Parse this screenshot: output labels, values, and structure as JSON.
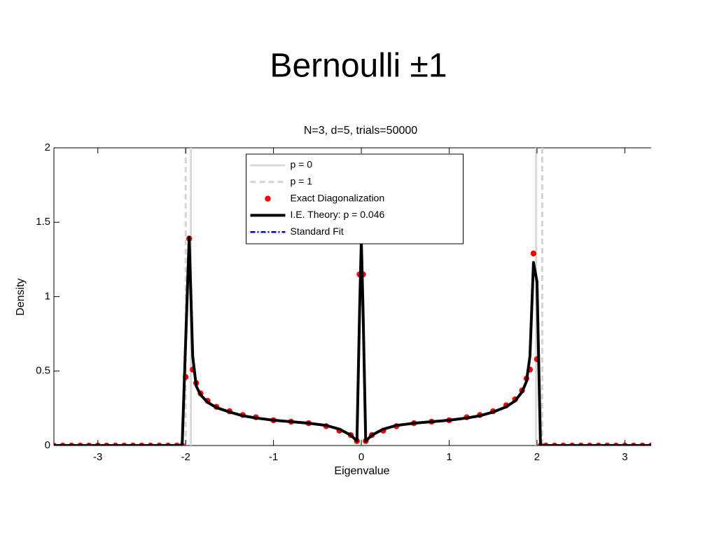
{
  "slide": {
    "title": "Bernoulli ±1"
  },
  "chart_data": {
    "type": "line",
    "title": "N=3, d=5, trials=50000",
    "x_label": "Eigenvalue",
    "y_label": "Density",
    "xlim": [
      -3.5,
      3.3
    ],
    "ylim": [
      0,
      2
    ],
    "xticks": [
      -3,
      -2,
      -1,
      0,
      1,
      2,
      3
    ],
    "yticks": [
      0,
      0.5,
      1,
      1.5,
      2
    ],
    "legend": "top-center",
    "x": [
      -3.5,
      -3.4,
      -3.3,
      -3.2,
      -3.1,
      -3.0,
      -2.9,
      -2.8,
      -2.7,
      -2.6,
      -2.5,
      -2.4,
      -2.3,
      -2.2,
      -2.1,
      -2.04,
      -2.0,
      -1.96,
      -1.92,
      -1.88,
      -1.83,
      -1.75,
      -1.65,
      -1.5,
      -1.35,
      -1.2,
      -1.0,
      -0.8,
      -0.6,
      -0.4,
      -0.25,
      -0.12,
      -0.05,
      -0.02,
      0,
      0.02,
      0.05,
      0.12,
      0.25,
      0.4,
      0.6,
      0.8,
      1.0,
      1.2,
      1.35,
      1.5,
      1.65,
      1.75,
      1.83,
      1.88,
      1.92,
      1.96,
      2.0,
      2.04,
      2.1,
      2.2,
      2.3,
      2.4,
      2.5,
      2.6,
      2.7,
      2.8,
      2.9,
      3.0,
      3.1,
      3.2,
      3.3
    ],
    "series": [
      {
        "name": "p = 0",
        "color": "#d9d9d9",
        "style": "solid",
        "x": [
          -1.94,
          -1.94,
          0,
          1.99,
          1.99
        ],
        "values": [
          0,
          2,
          null,
          2,
          0
        ]
      },
      {
        "name": "p = 1",
        "color": "#d4d4d4",
        "style": "dashed",
        "x": [
          -2.0,
          -2.0,
          0,
          2.06,
          2.06
        ],
        "values": [
          0,
          2,
          null,
          2,
          0
        ]
      },
      {
        "name": "Exact Diagonalization",
        "color": "#ff0000",
        "style": "marker",
        "values": [
          0,
          0,
          0,
          0,
          0,
          0,
          0,
          0,
          0,
          0,
          0,
          0,
          0,
          0,
          0,
          0,
          0.46,
          1.39,
          0.51,
          0.42,
          0.35,
          0.3,
          0.26,
          0.23,
          0.205,
          0.19,
          0.17,
          0.16,
          0.15,
          0.13,
          0.1,
          0.07,
          0.03,
          1.15,
          null,
          1.15,
          0.03,
          0.07,
          0.1,
          0.13,
          0.15,
          0.16,
          0.17,
          0.19,
          0.205,
          0.23,
          0.27,
          0.31,
          0.37,
          0.45,
          0.51,
          1.29,
          0.58,
          0,
          0,
          0,
          0,
          0,
          0,
          0,
          0,
          0,
          0,
          0,
          0,
          0,
          0
        ]
      },
      {
        "name": "I.E. Theory: p = 0.046",
        "color": "#000000",
        "style": "thick",
        "values": [
          0,
          0,
          0,
          0,
          0,
          0,
          0,
          0,
          0,
          0,
          0,
          0,
          0,
          0,
          0,
          0,
          0.7,
          1.4,
          0.6,
          0.4,
          0.34,
          0.29,
          0.255,
          0.225,
          0.2,
          0.185,
          0.17,
          0.16,
          0.15,
          0.135,
          0.11,
          0.07,
          0.03,
          0.9,
          1.38,
          0.9,
          0.03,
          0.07,
          0.11,
          0.135,
          0.15,
          0.16,
          0.17,
          0.185,
          0.2,
          0.225,
          0.26,
          0.3,
          0.36,
          0.43,
          0.6,
          1.23,
          1.1,
          0,
          0,
          0,
          0,
          0,
          0,
          0,
          0,
          0,
          0,
          0,
          0,
          0,
          0
        ]
      },
      {
        "name": "Standard Fit",
        "color": "#0000cc",
        "style": "dashdot",
        "x": [],
        "values": []
      }
    ]
  }
}
